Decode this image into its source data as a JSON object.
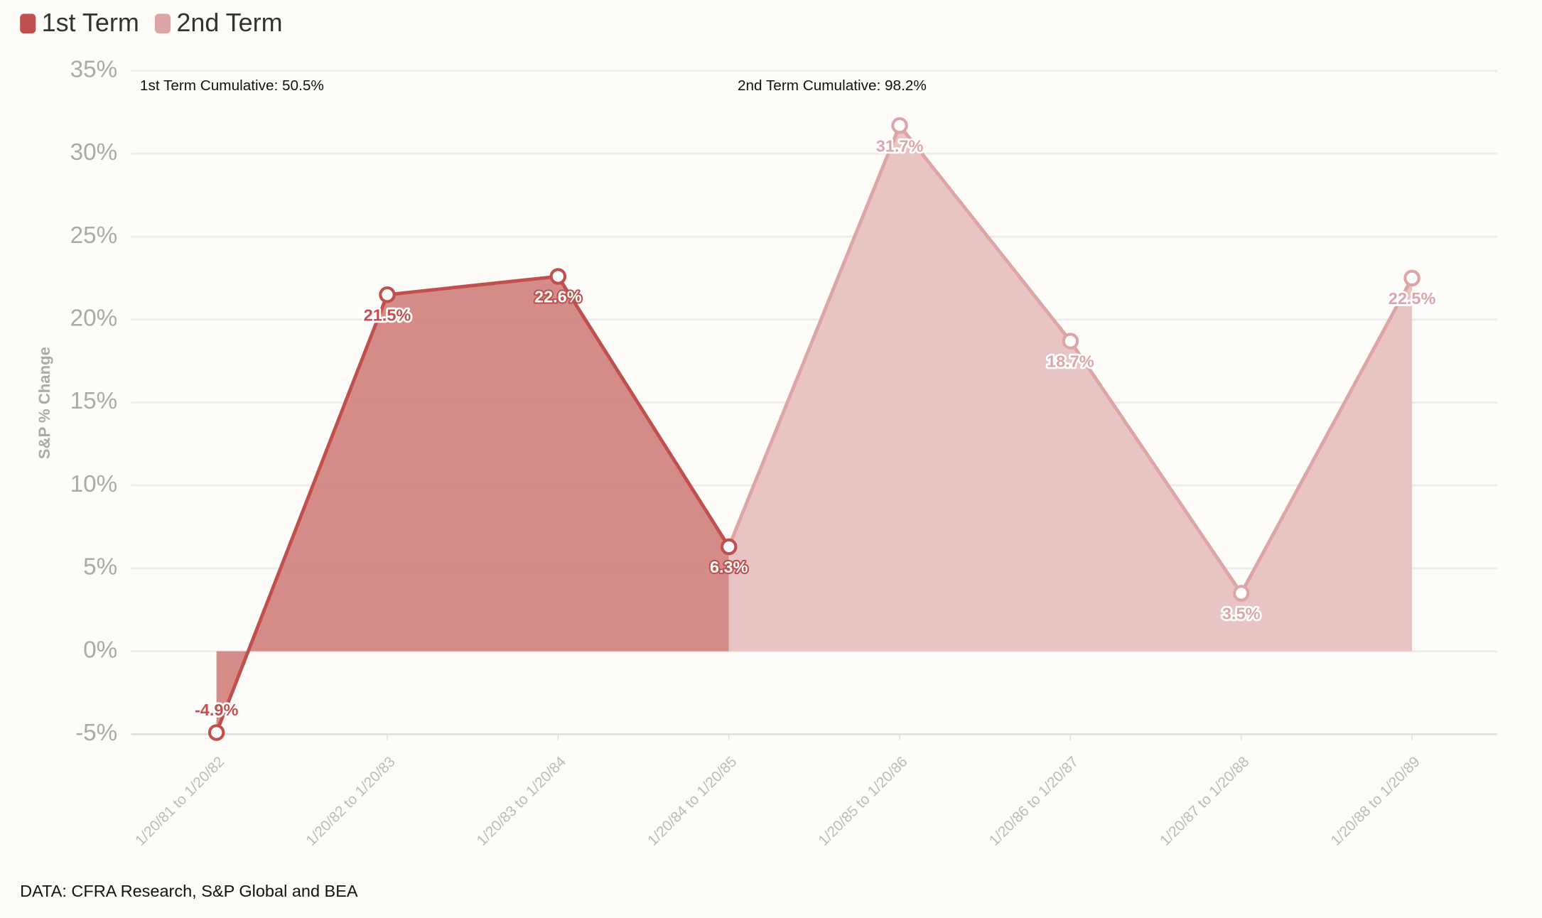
{
  "chart_data": {
    "type": "area",
    "categories": [
      "1/20/81 to 1/20/82",
      "1/20/82 to 1/20/83",
      "1/20/83 to 1/20/84",
      "1/20/84 to 1/20/85",
      "1/20/85 to 1/20/86",
      "1/20/86 to 1/20/87",
      "1/20/87 to 1/20/88",
      "1/20/88 to 1/20/89"
    ],
    "series": [
      {
        "name": "1st Term",
        "color": "#c0504d",
        "fill": "#d38683",
        "values": [
          -4.9,
          21.5,
          22.6,
          6.3,
          null,
          null,
          null,
          null
        ],
        "value_labels": [
          "-4.9%",
          "21.5%",
          "22.6%",
          "6.3%",
          null,
          null,
          null,
          null
        ]
      },
      {
        "name": "2nd Term",
        "color": "#dea5a6",
        "fill": "#e8c1c1",
        "values": [
          null,
          null,
          null,
          null,
          31.7,
          18.7,
          3.5,
          22.5
        ],
        "value_labels": [
          null,
          null,
          null,
          null,
          "31.7%",
          "18.7%",
          "3.5%",
          "22.5%"
        ]
      }
    ],
    "annotations": [
      "1st Term Cumulative: 50.5%",
      "2nd Term Cumulative: 98.2%"
    ],
    "ylabel": "S&P % Change",
    "source": "DATA: CFRA Research, S&P Global and BEA",
    "ylim": [
      -5,
      35
    ],
    "yticks": [
      {
        "value": -5,
        "label": "-5%"
      },
      {
        "value": 0,
        "label": "0%"
      },
      {
        "value": 5,
        "label": "5%"
      },
      {
        "value": 10,
        "label": "10%"
      },
      {
        "value": 15,
        "label": "15%"
      },
      {
        "value": 20,
        "label": "20%"
      },
      {
        "value": 25,
        "label": "25%"
      },
      {
        "value": 30,
        "label": "30%"
      },
      {
        "value": 35,
        "label": "35%"
      }
    ],
    "grid": true,
    "legend": "top-left"
  }
}
